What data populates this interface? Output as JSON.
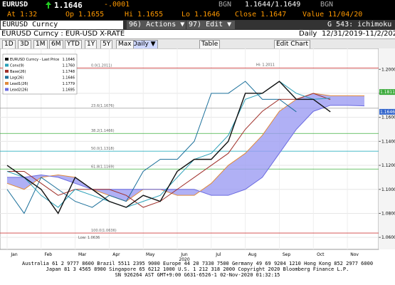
{
  "header": {
    "ticker": "EURUSD",
    "price": "1.1646",
    "change": "-.0001",
    "bid_src": "BGN",
    "bidask": "1.1644/1.1649",
    "ask_src": "BGN"
  },
  "quote": {
    "at": "At 1:32",
    "open": "Op 1.1655",
    "high": "Hi 1.1655",
    "low": "Lo 1.1646",
    "close": "Close 1.1647",
    "value": "Value 11/04/20"
  },
  "bar": {
    "security": "EURUSD Curncy",
    "actions": "96) Actions ▼",
    "edit": "97) Edit ▼",
    "page": "G 543: ichimoku"
  },
  "info": {
    "frequency": "Daily",
    "range": "12/31/2019-11/2/2020"
  },
  "toolbar": {
    "periods": [
      "1D",
      "3D",
      "1M",
      "6M",
      "YTD",
      "1Y",
      "5Y",
      "Max"
    ],
    "freq": "Daily ▼",
    "table": "Table",
    "edit_chart": "Edit Chart"
  },
  "chart_data": {
    "type": "line",
    "title": "EURUSD Curncy : EUR-USD X-RATE",
    "categories": [
      "Jan",
      null,
      "Feb",
      null,
      "Mar",
      null,
      "Apr",
      null,
      "May",
      null,
      "Jun",
      null,
      "Jul",
      null,
      "Aug",
      null,
      "Sep",
      null,
      "Oct",
      null,
      "Nov",
      null
    ],
    "year_label": "2020",
    "series": [
      {
        "name": "EURUSD Curncy - Last Price",
        "last": "1.1646",
        "color": "#111111",
        "values": [
          1.12,
          1.11,
          1.1,
          1.08,
          1.11,
          1.1,
          1.09,
          1.085,
          1.095,
          1.09,
          1.115,
          1.125,
          1.125,
          1.14,
          1.18,
          1.18,
          1.19,
          1.175,
          1.175,
          1.1646,
          null,
          null
        ]
      },
      {
        "name": "Conv(9)",
        "last": "1.1760",
        "color": "#2aa0b8",
        "values": [
          1.115,
          1.11,
          1.095,
          1.085,
          1.1,
          1.095,
          1.09,
          1.085,
          1.09,
          1.095,
          1.11,
          1.125,
          1.13,
          1.145,
          1.175,
          1.18,
          1.19,
          1.18,
          1.175,
          1.176,
          null,
          null
        ]
      },
      {
        "name": "Base(26)",
        "last": "1.1748",
        "color": "#a0302a",
        "values": [
          1.115,
          1.115,
          1.105,
          1.095,
          1.1,
          1.1,
          1.1,
          1.095,
          1.085,
          1.09,
          1.1,
          1.11,
          1.12,
          1.13,
          1.15,
          1.165,
          1.175,
          1.175,
          1.18,
          1.1748,
          null,
          null
        ]
      },
      {
        "name": "Lag(26)",
        "last": "1.1646",
        "color": "#1a6f9a",
        "values": [
          1.1,
          1.08,
          1.11,
          1.1,
          1.09,
          1.085,
          1.095,
          1.09,
          1.115,
          1.125,
          1.125,
          1.14,
          1.18,
          1.18,
          1.19,
          1.175,
          1.175,
          1.1646,
          null,
          null,
          null,
          null
        ]
      },
      {
        "name": "Lead1(26)",
        "last": "1.1779",
        "color": "#e08a3c",
        "values": [
          1.105,
          1.1,
          1.11,
          1.112,
          1.11,
          1.1,
          1.095,
          1.09,
          1.1,
          1.1,
          1.095,
          1.095,
          1.105,
          1.12,
          1.13,
          1.145,
          1.165,
          1.175,
          1.18,
          1.178,
          1.178,
          1.1779
        ]
      },
      {
        "name": "Lead2(26)",
        "last": "1.1695",
        "color": "#6b6be0",
        "values": [
          1.11,
          1.11,
          1.112,
          1.11,
          1.105,
          1.1,
          1.1,
          1.1,
          1.1,
          1.1,
          1.1,
          1.1,
          1.095,
          1.095,
          1.1,
          1.11,
          1.13,
          1.15,
          1.165,
          1.17,
          1.17,
          1.1695
        ]
      }
    ],
    "cloud_color": "#9c9cf2",
    "levels": [
      {
        "value": 1.2011,
        "label": "0.0(1.2011)",
        "color": "#d04040"
      },
      {
        "value": 1.1676,
        "label": "23.6(1.1676)",
        "color": "#999999"
      },
      {
        "value": 1.1466,
        "label": "38.2(1.1466)",
        "color": "#40b040"
      },
      {
        "value": 1.1318,
        "label": "50.0(1.1318)",
        "color": "#30b0c0"
      },
      {
        "value": 1.1169,
        "label": "61.8(1.1169)",
        "color": "#40b040"
      },
      {
        "value": 1.0636,
        "label": "100.0(1.0636)",
        "color": "#d04040"
      }
    ],
    "extremes": [
      {
        "value": 1.2011,
        "label": "Hi: 1.2011"
      },
      {
        "value": 1.0636,
        "label": "Low: 1.0636"
      }
    ],
    "tags": [
      {
        "value": 1.1811,
        "label": "1.1811",
        "color": "#3aaa3a"
      },
      {
        "value": 1.1646,
        "label": "1.1646",
        "color": "#3366cc"
      }
    ],
    "ylim": [
      1.05,
      1.215
    ],
    "yticks": [
      {
        "value": 1.06,
        "label": "1.0600"
      },
      {
        "value": 1.08,
        "label": "1.0800"
      },
      {
        "value": 1.1,
        "label": "1.1000"
      },
      {
        "value": 1.12,
        "label": "1.1200"
      },
      {
        "value": 1.14,
        "label": "1.1400"
      },
      {
        "value": 1.16,
        "label": "1.1600"
      },
      {
        "value": 1.18,
        "label": "1.1800"
      },
      {
        "value": 1.2,
        "label": "1.2000"
      }
    ],
    "grid": true
  },
  "footer": [
    "Australia 61 2 9777 8600 Brazil 5511 2395 9000 Europe 44 20 7330 7500 Germany 49 69 9204 1210 Hong Kong 852 2977 6000",
    "Japan 81 3 4565 8900       Singapore 65 6212 1000       U.S. 1 212 318 2000       Copyright 2020 Bloomberg Finance L.P.",
    "SN 926264 AST  GMT+9:00 G631-6526-1 02-Nov-2020 01:32:15"
  ]
}
